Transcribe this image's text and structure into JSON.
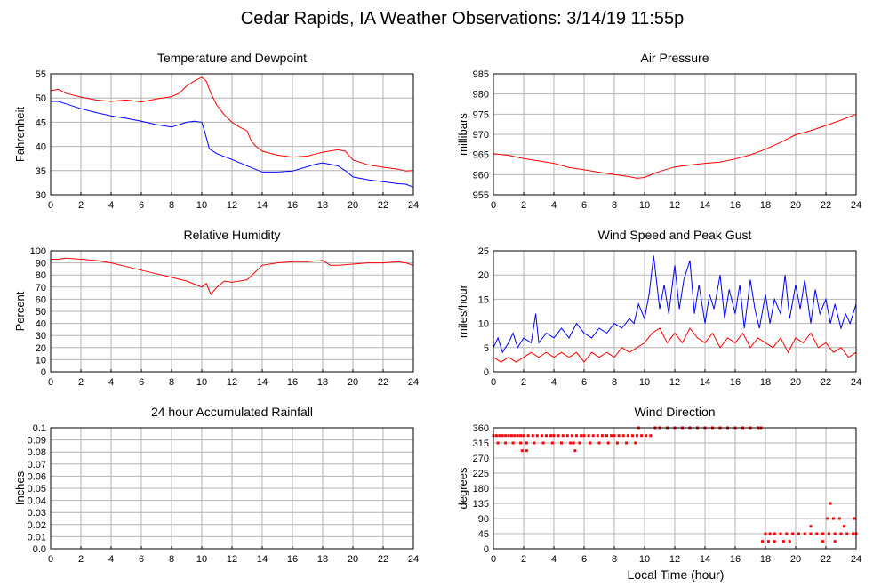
{
  "page": {
    "title": "Cedar Rapids, IA Weather Observations: 3/14/19 11:55p",
    "xlabel": "Local Time (hour)"
  },
  "colors": {
    "red": "#ff0000",
    "blue": "#0000ff",
    "grid": "#b4b4b4",
    "frame": "#000000"
  },
  "chart_data": [
    {
      "id": "temp",
      "type": "line",
      "title": "Temperature and Dewpoint",
      "ylabel": "Fahrenheit",
      "xlim": [
        0,
        24
      ],
      "ylim": [
        30,
        55
      ],
      "xticks": [
        0,
        2,
        4,
        6,
        8,
        10,
        12,
        14,
        16,
        18,
        20,
        22,
        24
      ],
      "yticks": [
        30,
        35,
        40,
        45,
        50,
        55
      ],
      "series": [
        {
          "color": "#ff0000",
          "x": [
            0,
            0.5,
            1,
            2,
            3,
            4,
            5,
            6,
            7,
            8,
            8.5,
            9,
            9.5,
            10,
            10.3,
            10.6,
            11,
            11.5,
            12,
            12.5,
            13,
            13.3,
            13.6,
            14,
            15,
            16,
            17,
            17.5,
            18,
            19,
            19.5,
            20,
            21,
            22,
            23,
            23.5,
            24
          ],
          "y": [
            51.5,
            51.8,
            51,
            50.2,
            49.6,
            49.3,
            49.6,
            49.2,
            49.8,
            50.3,
            51,
            52.5,
            53.5,
            54.3,
            53.5,
            51,
            48.5,
            46.5,
            45,
            44,
            43.2,
            41,
            40,
            39,
            38.2,
            37.8,
            38,
            38.4,
            38.8,
            39.3,
            39,
            37.2,
            36.2,
            35.7,
            35.3,
            34.9,
            35
          ]
        },
        {
          "color": "#0000ff",
          "x": [
            0,
            0.5,
            1,
            2,
            3,
            4,
            5,
            6,
            7,
            8,
            8.5,
            9,
            9.5,
            10,
            10.2,
            10.5,
            11,
            12,
            13,
            14,
            15,
            16,
            17,
            17.5,
            18,
            19,
            19.5,
            20,
            21,
            22,
            23,
            23.5,
            24
          ],
          "y": [
            49.3,
            49.3,
            48.8,
            47.8,
            47,
            46.3,
            45.8,
            45.2,
            44.5,
            44,
            44.5,
            45,
            45.2,
            45,
            43,
            39.5,
            38.5,
            37.3,
            36,
            34.7,
            34.7,
            34.9,
            35.8,
            36.3,
            36.6,
            36,
            35,
            33.7,
            33.1,
            32.7,
            32.3,
            32.2,
            31.6
          ]
        }
      ]
    },
    {
      "id": "pressure",
      "type": "line",
      "title": "Air Pressure",
      "ylabel": "millibars",
      "xlim": [
        0,
        24
      ],
      "ylim": [
        955,
        985
      ],
      "xticks": [
        0,
        2,
        4,
        6,
        8,
        10,
        12,
        14,
        16,
        18,
        20,
        22,
        24
      ],
      "yticks": [
        955,
        960,
        965,
        970,
        975,
        980,
        985
      ],
      "series": [
        {
          "color": "#ff0000",
          "x": [
            0,
            1,
            2,
            3,
            4,
            5,
            6,
            7,
            8,
            9,
            9.5,
            10,
            10.5,
            11,
            12,
            13,
            14,
            15,
            16,
            17,
            18,
            19,
            20,
            21,
            22,
            23,
            24
          ],
          "y": [
            965.2,
            964.8,
            964,
            963.4,
            962.8,
            961.8,
            961.2,
            960.6,
            960,
            959.5,
            959.1,
            959.3,
            960.1,
            960.8,
            961.9,
            962.4,
            962.8,
            963.1,
            963.9,
            964.9,
            966.3,
            968,
            969.9,
            970.9,
            972.2,
            973.5,
            975
          ]
        }
      ]
    },
    {
      "id": "humidity",
      "type": "line",
      "title": "Relative Humidity",
      "ylabel": "Percent",
      "xlim": [
        0,
        24
      ],
      "ylim": [
        0,
        100
      ],
      "xticks": [
        0,
        2,
        4,
        6,
        8,
        10,
        12,
        14,
        16,
        18,
        20,
        22,
        24
      ],
      "yticks": [
        0,
        10,
        20,
        30,
        40,
        50,
        60,
        70,
        80,
        90,
        100
      ],
      "series": [
        {
          "color": "#ff0000",
          "x": [
            0,
            0.5,
            1,
            2,
            3,
            4,
            5,
            6,
            7,
            8,
            9,
            9.6,
            10,
            10.3,
            10.6,
            11,
            11.5,
            12,
            12.5,
            13,
            13.5,
            14,
            15,
            16,
            17,
            18,
            18.5,
            19,
            20,
            21,
            22,
            23,
            23.5,
            24
          ],
          "y": [
            93,
            93,
            94,
            93,
            92,
            90,
            87,
            84,
            81,
            78,
            75,
            72,
            70,
            73,
            64,
            70,
            75,
            74,
            75,
            76,
            82,
            88,
            90,
            91,
            91,
            92,
            88,
            88,
            89,
            90,
            90,
            91,
            90,
            88
          ]
        }
      ]
    },
    {
      "id": "wind",
      "type": "line",
      "title": "Wind Speed and Peak Gust",
      "ylabel": "miles/hour",
      "xlim": [
        0,
        24
      ],
      "ylim": [
        0,
        25
      ],
      "xticks": [
        0,
        2,
        4,
        6,
        8,
        10,
        12,
        14,
        16,
        18,
        20,
        22,
        24
      ],
      "yticks": [
        0,
        5,
        10,
        15,
        20,
        25
      ],
      "series": [
        {
          "color": "#0000ff",
          "x": [
            0,
            0.3,
            0.6,
            1,
            1.3,
            1.6,
            2,
            2.5,
            2.8,
            3,
            3.5,
            4,
            4.5,
            5,
            5.5,
            6,
            6.5,
            7,
            7.5,
            8,
            8.5,
            9,
            9.3,
            9.6,
            10,
            10.3,
            10.6,
            11,
            11.3,
            11.6,
            12,
            12.3,
            12.6,
            13,
            13.3,
            13.6,
            14,
            14.3,
            14.6,
            15,
            15.3,
            15.6,
            16,
            16.3,
            16.6,
            17,
            17.3,
            17.6,
            18,
            18.3,
            18.6,
            19,
            19.3,
            19.6,
            20,
            20.3,
            20.6,
            21,
            21.3,
            21.6,
            22,
            22.3,
            22.6,
            23,
            23.3,
            23.6,
            24
          ],
          "y": [
            5,
            7,
            4,
            6,
            8,
            5,
            7,
            6,
            12,
            6,
            8,
            7,
            9,
            7,
            10,
            8,
            7,
            9,
            8,
            10,
            9,
            11,
            10,
            14,
            11,
            16,
            24,
            13,
            18,
            12,
            22,
            13,
            19,
            23,
            12,
            18,
            10,
            16,
            13,
            20,
            11,
            17,
            12,
            18,
            9,
            19,
            13,
            9,
            16,
            10,
            15,
            12,
            20,
            11,
            18,
            13,
            19,
            10,
            17,
            12,
            15,
            10,
            14,
            9,
            12,
            10,
            14
          ]
        },
        {
          "color": "#ff0000",
          "x": [
            0,
            0.5,
            1,
            1.5,
            2,
            2.5,
            3,
            3.5,
            4,
            4.5,
            5,
            5.5,
            6,
            6.5,
            7,
            7.5,
            8,
            8.5,
            9,
            9.5,
            10,
            10.5,
            11,
            11.5,
            12,
            12.5,
            13,
            13.5,
            14,
            14.5,
            15,
            15.5,
            16,
            16.5,
            17,
            17.5,
            18,
            18.5,
            19,
            19.5,
            20,
            20.5,
            21,
            21.5,
            22,
            22.5,
            23,
            23.5,
            24
          ],
          "y": [
            3,
            2,
            3,
            2,
            3,
            4,
            3,
            4,
            3,
            4,
            3,
            4,
            2,
            4,
            3,
            4,
            3,
            5,
            4,
            5,
            6,
            8,
            9,
            6,
            8,
            6,
            9,
            7,
            6,
            8,
            5,
            7,
            6,
            8,
            5,
            7,
            6,
            5,
            7,
            4,
            7,
            6,
            8,
            5,
            6,
            4,
            5,
            3,
            4
          ]
        }
      ]
    },
    {
      "id": "rain",
      "type": "line",
      "title": "24 hour Accumulated Rainfall",
      "ylabel": "Inches",
      "xlim": [
        0,
        24
      ],
      "ylim": [
        0,
        0.1
      ],
      "xticks": [
        0,
        2,
        4,
        6,
        8,
        10,
        12,
        14,
        16,
        18,
        20,
        22,
        24
      ],
      "yticks": [
        0,
        0.01,
        0.02,
        0.03,
        0.04,
        0.05,
        0.06,
        0.07,
        0.08,
        0.09,
        0.1
      ],
      "ytick_labels": [
        "0.0",
        "0.01",
        "0.02",
        "0.03",
        "0.04",
        "0.05",
        "0.06",
        "0.07",
        "0.08",
        "0.09",
        "0.1"
      ],
      "series": [
        {
          "color": "#ff0000",
          "x": [
            0,
            24
          ],
          "y": [
            0,
            0
          ]
        }
      ]
    },
    {
      "id": "direction",
      "type": "scatter",
      "title": "Wind Direction",
      "ylabel": "degrees",
      "xlabel": "Local Time (hour)",
      "xlim": [
        0,
        24
      ],
      "ylim": [
        0,
        360
      ],
      "xticks": [
        0,
        2,
        4,
        6,
        8,
        10,
        12,
        14,
        16,
        18,
        20,
        22,
        24
      ],
      "yticks": [
        0,
        45,
        90,
        135,
        180,
        225,
        270,
        315,
        360
      ],
      "series": [
        {
          "color": "#ff0000",
          "x": [
            0,
            0.2,
            0.4,
            0.6,
            0.8,
            1,
            1.2,
            1.4,
            1.6,
            1.8,
            2,
            2.3,
            2.6,
            2.9,
            3.2,
            3.5,
            3.8,
            4,
            4.3,
            4.6,
            4.9,
            5.2,
            5.5,
            5.8,
            6,
            6.3,
            6.6,
            6.9,
            7.2,
            7.5,
            7.8,
            8,
            8.3,
            8.6,
            8.9,
            9.2,
            9.5,
            9.8,
            10.1,
            10.4,
            10.7,
            11,
            11.5,
            12,
            12.5,
            13,
            13.5,
            14,
            14.5,
            15,
            15.5,
            16,
            16.5,
            17,
            17.5,
            17.7,
            18,
            18.3,
            18.6,
            19,
            19.4,
            19.8,
            20.2,
            20.6,
            21,
            21.4,
            21.8,
            22.2,
            22.6,
            23,
            23.4,
            23.8,
            24,
            0.3,
            0.8,
            1.3,
            1.8,
            2.2,
            2.7,
            3.3,
            3.9,
            4.5,
            5.1,
            5.3,
            5.7,
            6.4,
            7,
            7.6,
            8.2,
            8.8,
            9.4,
            1.9,
            2.2,
            5.4,
            9.6,
            17.8,
            18.2,
            18.6,
            19.2,
            19.6,
            21,
            21.8,
            22.1,
            22.3,
            22.5,
            22.6,
            22.9,
            23.2,
            23.9
          ],
          "y": [
            337,
            337,
            337,
            337,
            337,
            337,
            337,
            337,
            337,
            337,
            337,
            337,
            337,
            337,
            337,
            337,
            337,
            337,
            337,
            337,
            337,
            337,
            337,
            337,
            337,
            337,
            337,
            337,
            337,
            337,
            337,
            337,
            337,
            337,
            337,
            337,
            337,
            337,
            337,
            337,
            360,
            360,
            360,
            360,
            360,
            360,
            360,
            360,
            360,
            360,
            360,
            360,
            360,
            360,
            360,
            360,
            45,
            45,
            45,
            45,
            45,
            45,
            45,
            45,
            45,
            45,
            45,
            45,
            45,
            45,
            45,
            45,
            45,
            315,
            315,
            315,
            315,
            315,
            315,
            315,
            315,
            315,
            315,
            315,
            315,
            315,
            315,
            315,
            315,
            315,
            315,
            292,
            292,
            292,
            360,
            22,
            22,
            22,
            22,
            22,
            67,
            22,
            90,
            135,
            90,
            22,
            90,
            67,
            90
          ]
        }
      ]
    }
  ]
}
